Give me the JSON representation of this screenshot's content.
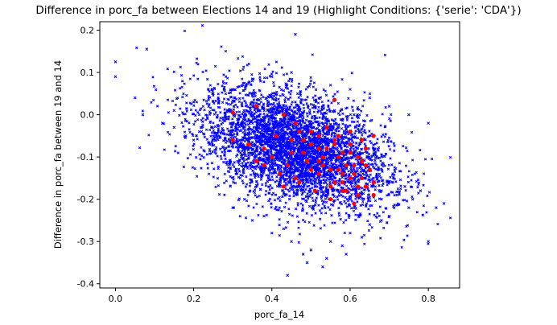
{
  "chart_data": {
    "type": "scatter",
    "title": "Difference in porc_fa between Elections 14 and 19 (Highlight Conditions: {'serie': 'CDA'})",
    "xlabel": "porc_fa_14",
    "ylabel": "Difference in porc_fa between 19 and 14",
    "xlim": [
      -0.04,
      0.88
    ],
    "ylim": [
      -0.41,
      0.22
    ],
    "xticks": [
      "0.0",
      "0.2",
      "0.4",
      "0.6",
      "0.8"
    ],
    "yticks": [
      "0.2",
      "0.1",
      "0.0",
      "-0.1",
      "-0.2",
      "-0.3",
      "-0.4"
    ],
    "grid": false,
    "legend": "none",
    "colors": {
      "base": "#0000ff",
      "highlight": "#ff0000"
    },
    "series": [
      {
        "marker": "x",
        "color": "#0000ff",
        "x": [
          0.0,
          0.0,
          0.08,
          0.46,
          0.05,
          0.07,
          0.12,
          0.15,
          0.18,
          0.2,
          0.22,
          0.24,
          0.26,
          0.28,
          0.3,
          0.32,
          0.34,
          0.36,
          0.38,
          0.4,
          0.42,
          0.44,
          0.46,
          0.48,
          0.5,
          0.52,
          0.54,
          0.56,
          0.58,
          0.6,
          0.62,
          0.64,
          0.66,
          0.68,
          0.7,
          0.72,
          0.74,
          0.76,
          0.78,
          0.8,
          0.82,
          0.84,
          0.15,
          0.2,
          0.25,
          0.3,
          0.35,
          0.4,
          0.45,
          0.5,
          0.55,
          0.6,
          0.65,
          0.7,
          0.75,
          0.8,
          0.3,
          0.35,
          0.4,
          0.45,
          0.5,
          0.55,
          0.6,
          0.65,
          0.7,
          0.75,
          0.33,
          0.38,
          0.43,
          0.48,
          0.53,
          0.58,
          0.63,
          0.68,
          0.36,
          0.41,
          0.46,
          0.51,
          0.56,
          0.61,
          0.44,
          0.49,
          0.54,
          0.59
        ],
        "y": [
          0.125,
          0.09,
          0.155,
          0.19,
          0.04,
          0.0,
          -0.02,
          -0.03,
          -0.05,
          -0.06,
          -0.04,
          -0.07,
          -0.05,
          -0.08,
          -0.06,
          -0.09,
          -0.07,
          -0.1,
          -0.08,
          -0.11,
          -0.09,
          -0.12,
          -0.1,
          -0.13,
          -0.11,
          -0.14,
          -0.12,
          -0.15,
          -0.13,
          -0.16,
          -0.14,
          -0.17,
          -0.15,
          -0.18,
          -0.16,
          -0.19,
          -0.17,
          -0.2,
          -0.18,
          -0.3,
          -0.22,
          -0.21,
          0.01,
          0.03,
          0.05,
          0.06,
          0.08,
          0.09,
          0.1,
          0.08,
          0.07,
          0.06,
          0.04,
          0.02,
          0.0,
          -0.02,
          -0.22,
          -0.25,
          -0.28,
          -0.3,
          -0.32,
          -0.3,
          -0.28,
          -0.26,
          -0.24,
          -0.22,
          -0.2,
          -0.24,
          -0.27,
          -0.33,
          -0.36,
          -0.31,
          -0.29,
          -0.25,
          0.02,
          0.04,
          0.03,
          0.02,
          0.01,
          0.0,
          -0.38,
          -0.35,
          -0.34,
          -0.33
        ]
      },
      {
        "name": "CDA",
        "marker": "o",
        "color": "#ff0000",
        "x": [
          0.3,
          0.36,
          0.43,
          0.56,
          0.3,
          0.34,
          0.38,
          0.41,
          0.45,
          0.47,
          0.5,
          0.52,
          0.54,
          0.56,
          0.58,
          0.6,
          0.62,
          0.64,
          0.66,
          0.36,
          0.4,
          0.44,
          0.48,
          0.52,
          0.55,
          0.57,
          0.59,
          0.61,
          0.63,
          0.65,
          0.42,
          0.46,
          0.5,
          0.53,
          0.56,
          0.58,
          0.6,
          0.62,
          0.64,
          0.66,
          0.38,
          0.43,
          0.47,
          0.51,
          0.55,
          0.59,
          0.62,
          0.45,
          0.49,
          0.53,
          0.57,
          0.61,
          0.63,
          0.66,
          0.48,
          0.52,
          0.56,
          0.6,
          0.55,
          0.58,
          0.61,
          0.64,
          0.5,
          0.54,
          0.57,
          0.6,
          0.63,
          0.46,
          0.52,
          0.58
        ],
        "y": [
          0.005,
          0.02,
          0.0,
          0.035,
          -0.06,
          -0.07,
          -0.08,
          -0.05,
          -0.06,
          -0.04,
          -0.07,
          -0.05,
          -0.08,
          -0.06,
          -0.09,
          -0.07,
          -0.1,
          -0.08,
          -0.05,
          -0.11,
          -0.1,
          -0.12,
          -0.09,
          -0.11,
          -0.13,
          -0.1,
          -0.12,
          -0.14,
          -0.11,
          -0.13,
          -0.14,
          -0.15,
          -0.13,
          -0.12,
          -0.16,
          -0.14,
          -0.15,
          -0.17,
          -0.12,
          -0.16,
          -0.12,
          -0.17,
          -0.16,
          -0.18,
          -0.17,
          -0.18,
          -0.19,
          -0.09,
          -0.11,
          -0.1,
          -0.13,
          -0.12,
          -0.15,
          -0.19,
          -0.06,
          -0.08,
          -0.07,
          -0.09,
          -0.2,
          -0.18,
          -0.21,
          -0.17,
          -0.04,
          -0.03,
          -0.05,
          -0.04,
          -0.06,
          -0.02,
          -0.14,
          -0.16
        ]
      }
    ]
  }
}
